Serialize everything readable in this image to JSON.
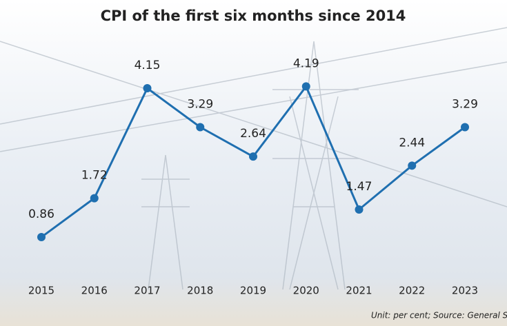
{
  "chart_data": {
    "type": "line",
    "title": "CPI of the first six months since 2014",
    "categories": [
      "2015",
      "2016",
      "2017",
      "2018",
      "2019",
      "2020",
      "2021",
      "2022",
      "2023"
    ],
    "series": [
      {
        "color": "#1f6fb0",
        "values": [
          0.86,
          1.72,
          4.15,
          3.29,
          2.64,
          4.19,
          1.47,
          2.44,
          3.29
        ]
      }
    ],
    "footnote": "Unit: per cent; Source: General Statistic"
  }
}
